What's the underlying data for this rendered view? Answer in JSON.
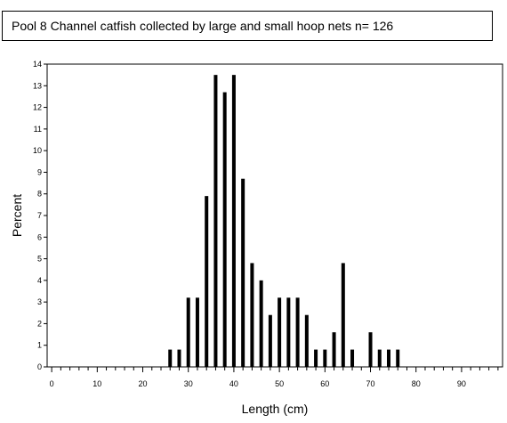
{
  "chart_data": {
    "type": "bar",
    "title": "Pool 8 Channel catfish collected by large and small hoop nets n= 126",
    "xlabel": "Length (cm)",
    "ylabel": "Percent",
    "xlim": [
      -1,
      99
    ],
    "ylim": [
      0,
      14
    ],
    "x_ticks": [
      "0",
      "10",
      "20",
      "30",
      "40",
      "50",
      "60",
      "70",
      "80",
      "90"
    ],
    "y_ticks": [
      "0",
      "1",
      "2",
      "3",
      "4",
      "5",
      "6",
      "7",
      "8",
      "9",
      "10",
      "11",
      "12",
      "13",
      "14"
    ],
    "grid": false,
    "bars": [
      {
        "x": 26,
        "value": 0.8
      },
      {
        "x": 28,
        "value": 0.8
      },
      {
        "x": 30,
        "value": 3.2
      },
      {
        "x": 32,
        "value": 3.2
      },
      {
        "x": 34,
        "value": 7.9
      },
      {
        "x": 36,
        "value": 13.5
      },
      {
        "x": 38,
        "value": 12.7
      },
      {
        "x": 40,
        "value": 13.5
      },
      {
        "x": 42,
        "value": 8.7
      },
      {
        "x": 44,
        "value": 4.8
      },
      {
        "x": 46,
        "value": 4.0
      },
      {
        "x": 48,
        "value": 2.4
      },
      {
        "x": 50,
        "value": 3.2
      },
      {
        "x": 52,
        "value": 3.2
      },
      {
        "x": 54,
        "value": 3.2
      },
      {
        "x": 56,
        "value": 2.4
      },
      {
        "x": 58,
        "value": 0.8
      },
      {
        "x": 60,
        "value": 0.8
      },
      {
        "x": 62,
        "value": 1.6
      },
      {
        "x": 64,
        "value": 4.8
      },
      {
        "x": 66,
        "value": 0.8
      },
      {
        "x": 70,
        "value": 1.6
      },
      {
        "x": 72,
        "value": 0.8
      },
      {
        "x": 74,
        "value": 0.8
      },
      {
        "x": 76,
        "value": 0.8
      }
    ]
  }
}
